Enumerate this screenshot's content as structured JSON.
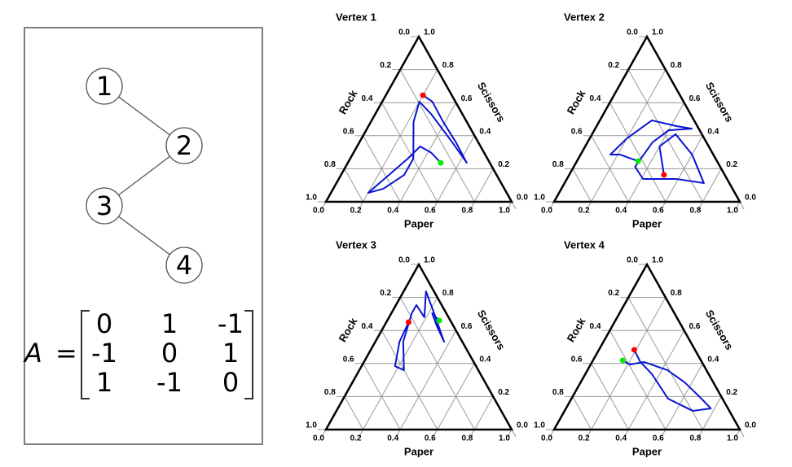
{
  "graph": {
    "nodes": [
      {
        "label": "1"
      },
      {
        "label": "2"
      },
      {
        "label": "3"
      },
      {
        "label": "4"
      }
    ],
    "edges": [
      [
        0,
        1
      ],
      [
        1,
        2
      ],
      [
        2,
        3
      ]
    ]
  },
  "matrix": {
    "name": "A",
    "relation": "=",
    "rows": [
      [
        0,
        1,
        -1
      ],
      [
        -1,
        0,
        1
      ],
      [
        1,
        -1,
        0
      ]
    ]
  },
  "chart_data": [
    {
      "type": "ternary",
      "title": "Vertex 1",
      "grid": true,
      "grid_color": "#999999",
      "axes": {
        "rock": {
          "label": "Rock",
          "ticks": [
            {
              "value": 0,
              "label": "0.0"
            },
            0.2,
            0.4,
            0.6,
            0.8,
            {
              "value": 1,
              "label": "1.0"
            }
          ]
        },
        "paper": {
          "label": "Paper",
          "ticks": [
            {
              "value": 0,
              "label": "0.0"
            },
            0.2,
            0.4,
            0.6,
            0.8,
            {
              "value": 1,
              "label": "1.0"
            }
          ]
        },
        "scissors": {
          "label": "Scissors",
          "ticks": [
            {
              "value": 0,
              "label": "0.0"
            },
            0.2,
            0.4,
            0.6,
            0.8,
            {
              "value": 1,
              "label": "1.0"
            }
          ]
        }
      },
      "trajectory": {
        "color": "#0a14d2",
        "paper": [
          0.2,
          0.27,
          0.39,
          0.52,
          0.64,
          0.5,
          0.3,
          0.2,
          0.23,
          0.34,
          0.34,
          0.27,
          0.2,
          0.24,
          0.31,
          0.34,
          0.42,
          0.5
        ],
        "scissors": [
          0.645,
          0.606,
          0.483,
          0.36,
          0.236,
          0.36,
          0.532,
          0.606,
          0.483,
          0.261,
          0.163,
          0.079,
          0.054,
          0.128,
          0.261,
          0.335,
          0.296,
          0.236
        ]
      },
      "markers": [
        {
          "color": "#ff0000",
          "paper": 0.2,
          "scissors": 0.645
        },
        {
          "color": "#00ee00",
          "paper": 0.5,
          "scissors": 0.236
        }
      ]
    },
    {
      "type": "ternary",
      "title": "Vertex 2",
      "grid": true,
      "grid_color": "#999999",
      "axes": {
        "rock": {
          "label": "Rock",
          "ticks": [
            {
              "value": 0,
              "label": "0.0"
            },
            0.2,
            0.4,
            0.6,
            0.8,
            {
              "value": 1,
              "label": "1.0"
            }
          ]
        },
        "paper": {
          "label": "Paper",
          "ticks": [
            {
              "value": 0,
              "label": "0.0"
            },
            0.2,
            0.4,
            0.6,
            0.8,
            {
              "value": 1,
              "label": "1.0"
            }
          ]
        },
        "scissors": {
          "label": "Scissors",
          "ticks": [
            {
              "value": 0,
              "label": "0.0"
            },
            0.2,
            0.4,
            0.6,
            0.8,
            {
              "value": 1,
              "label": "1.0"
            }
          ]
        }
      },
      "trajectory": {
        "color": "#0a14d2",
        "paper": [
          0.33,
          0.21,
          0.16,
          0.2,
          0.28,
          0.43,
          0.52,
          0.4,
          0.35,
          0.33,
          0.41,
          0.59,
          0.75,
          0.6,
          0.45,
          0.4,
          0.51
        ],
        "scissors": [
          0.246,
          0.286,
          0.286,
          0.384,
          0.493,
          0.458,
          0.443,
          0.433,
          0.36,
          0.212,
          0.138,
          0.138,
          0.113,
          0.286,
          0.409,
          0.335,
          0.163
        ]
      },
      "markers": [
        {
          "color": "#ff0000",
          "paper": 0.51,
          "scissors": 0.163
        },
        {
          "color": "#00ee00",
          "paper": 0.33,
          "scissors": 0.246
        }
      ]
    },
    {
      "type": "ternary",
      "title": "Vertex 3",
      "grid": true,
      "grid_color": "#999999",
      "axes": {
        "rock": {
          "label": "Rock",
          "ticks": [
            {
              "value": 0,
              "label": "0.0"
            },
            0.2,
            0.4,
            0.6,
            0.8,
            {
              "value": 1,
              "label": "1.0"
            }
          ]
        },
        "paper": {
          "label": "Paper",
          "ticks": [
            {
              "value": 0,
              "label": "0.0"
            },
            0.2,
            0.4,
            0.6,
            0.8,
            {
              "value": 1,
              "label": "1.0"
            }
          ]
        },
        "scissors": {
          "label": "Scissors",
          "ticks": [
            {
              "value": 0,
              "label": "0.0"
            },
            0.2,
            0.4,
            0.6,
            0.8,
            {
              "value": 1,
              "label": "1.0"
            }
          ]
        }
      },
      "trajectory": {
        "color": "#0a14d2",
        "paper": [
          0.12,
          0.13,
          0.18,
          0.24,
          0.15,
          0.11,
          0.11,
          0.19,
          0.12,
          0.21,
          0.37,
          0.28,
          0.22,
          0.28
        ],
        "scissors": [
          0.65,
          0.532,
          0.384,
          0.36,
          0.532,
          0.704,
          0.754,
          0.68,
          0.837,
          0.729,
          0.532,
          0.631,
          0.704,
          0.66
        ]
      },
      "markers": [
        {
          "color": "#ff0000",
          "paper": 0.12,
          "scissors": 0.65
        },
        {
          "color": "#00ee00",
          "paper": 0.28,
          "scissors": 0.66
        }
      ]
    },
    {
      "type": "ternary",
      "title": "Vertex 4",
      "grid": true,
      "grid_color": "#999999",
      "axes": {
        "rock": {
          "label": "Rock",
          "ticks": [
            {
              "value": 0,
              "label": "0.0"
            },
            0.2,
            0.4,
            0.6,
            0.8,
            {
              "value": 1,
              "label": "1.0"
            }
          ]
        },
        "paper": {
          "label": "Paper",
          "ticks": [
            {
              "value": 0,
              "label": "0.0"
            },
            0.2,
            0.4,
            0.6,
            0.8,
            {
              "value": 1,
              "label": "1.0"
            }
          ]
        },
        "scissors": {
          "label": "Scissors",
          "ticks": [
            {
              "value": 0,
              "label": "0.0"
            },
            0.2,
            0.4,
            0.6,
            0.8,
            {
              "value": 1,
              "label": "1.0"
            }
          ]
        }
      },
      "trajectory": {
        "color": "#0a14d2",
        "paper": [
          0.16,
          0.21,
          0.28,
          0.43,
          0.56,
          0.7,
          0.78,
          0.69,
          0.52,
          0.36,
          0.26,
          0.19
        ],
        "scissors": [
          0.419,
          0.394,
          0.409,
          0.36,
          0.286,
          0.187,
          0.128,
          0.113,
          0.187,
          0.335,
          0.409,
          0.483
        ]
      },
      "markers": [
        {
          "color": "#ff0000",
          "paper": 0.19,
          "scissors": 0.483
        },
        {
          "color": "#00ee00",
          "paper": 0.16,
          "scissors": 0.419
        }
      ]
    }
  ]
}
